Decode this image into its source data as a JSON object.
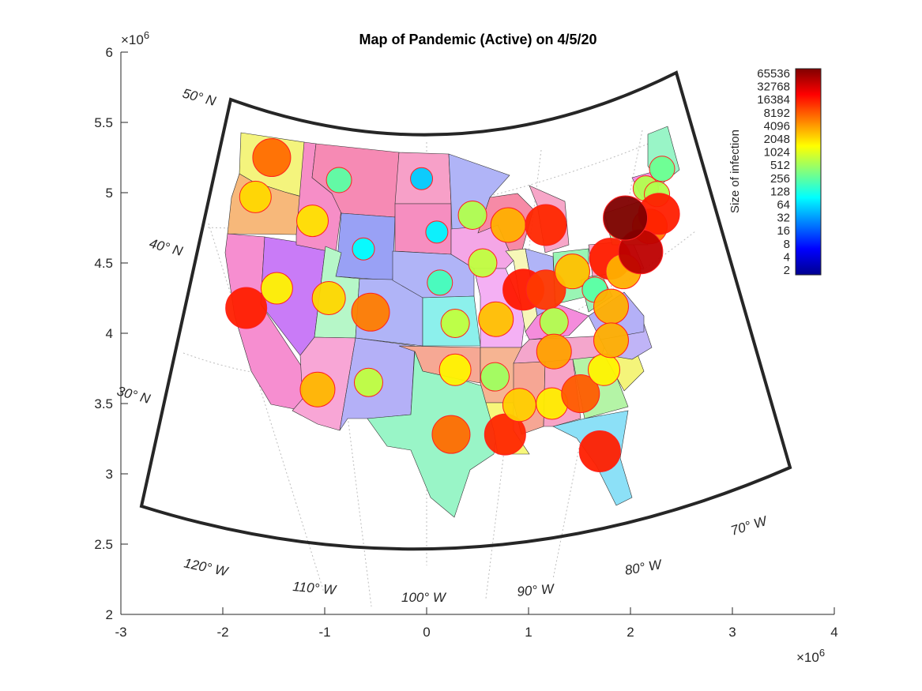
{
  "chart_data": {
    "type": "map",
    "title": "Map of Pandemic (Active) on 4/5/20",
    "x_ticks": [
      "-3",
      "-2",
      "-1",
      "0",
      "1",
      "2",
      "3",
      "4"
    ],
    "y_ticks": [
      "2",
      "2.5",
      "3",
      "3.5",
      "4",
      "4.5",
      "5",
      "5.5",
      "6"
    ],
    "x_exponent": "×10",
    "x_exponent_power": "6",
    "y_exponent": "×10",
    "y_exponent_power": "6",
    "xlim": [
      -3000000,
      4000000
    ],
    "ylim": [
      2000000,
      6000000
    ],
    "parallels": [
      "50° N",
      "40° N",
      "30° N"
    ],
    "meridians": [
      "120° W",
      "110° W",
      "100° W",
      "90° W",
      "80° W",
      "70° W"
    ],
    "colorbar": {
      "label": "Size of infection",
      "ticks": [
        "65536",
        "32768",
        "16384",
        "8192",
        "4096",
        "2048",
        "1024",
        "512",
        "256",
        "128",
        "64",
        "32",
        "16",
        "8",
        "4",
        "2"
      ],
      "scale": "log2",
      "colormap": "jet",
      "range": [
        2,
        65536
      ]
    },
    "bubbles": [
      {
        "x": -1.52,
        "y": 5.25,
        "c": 6000,
        "r": 24
      },
      {
        "x": -1.68,
        "y": 4.97,
        "c": 2000,
        "r": 20
      },
      {
        "x": -1.12,
        "y": 4.8,
        "c": 1800,
        "r": 20
      },
      {
        "x": -0.86,
        "y": 5.09,
        "c": 250,
        "r": 16
      },
      {
        "x": -0.62,
        "y": 4.6,
        "c": 100,
        "r": 14
      },
      {
        "x": -1.77,
        "y": 4.18,
        "c": 13000,
        "r": 26
      },
      {
        "x": -1.47,
        "y": 4.32,
        "c": 1500,
        "r": 20
      },
      {
        "x": -0.96,
        "y": 4.25,
        "c": 2000,
        "r": 21
      },
      {
        "x": -0.55,
        "y": 4.15,
        "c": 5000,
        "r": 24
      },
      {
        "x": -1.07,
        "y": 3.6,
        "c": 2800,
        "r": 22
      },
      {
        "x": -0.57,
        "y": 3.65,
        "c": 700,
        "r": 18
      },
      {
        "x": -0.05,
        "y": 5.1,
        "c": 60,
        "r": 14
      },
      {
        "x": 0.1,
        "y": 4.72,
        "c": 90,
        "r": 14
      },
      {
        "x": 0.13,
        "y": 4.36,
        "c": 200,
        "r": 16
      },
      {
        "x": 0.28,
        "y": 4.07,
        "c": 700,
        "r": 18
      },
      {
        "x": 0.28,
        "y": 3.74,
        "c": 1500,
        "r": 20
      },
      {
        "x": 0.24,
        "y": 3.28,
        "c": 6000,
        "r": 24
      },
      {
        "x": 0.45,
        "y": 4.84,
        "c": 600,
        "r": 18
      },
      {
        "x": 0.55,
        "y": 4.5,
        "c": 700,
        "r": 18
      },
      {
        "x": 0.67,
        "y": 3.69,
        "c": 500,
        "r": 18
      },
      {
        "x": 0.68,
        "y": 4.1,
        "c": 2500,
        "r": 22
      },
      {
        "x": 0.8,
        "y": 4.77,
        "c": 3000,
        "r": 22
      },
      {
        "x": 0.77,
        "y": 3.28,
        "c": 12000,
        "r": 26
      },
      {
        "x": 0.95,
        "y": 4.31,
        "c": 14000,
        "r": 26
      },
      {
        "x": 0.91,
        "y": 3.49,
        "c": 2200,
        "r": 21
      },
      {
        "x": 1.17,
        "y": 4.77,
        "c": 12000,
        "r": 26
      },
      {
        "x": 1.17,
        "y": 4.31,
        "c": 10000,
        "r": 25
      },
      {
        "x": 1.25,
        "y": 4.08,
        "c": 600,
        "r": 18
      },
      {
        "x": 1.25,
        "y": 3.87,
        "c": 3500,
        "r": 22
      },
      {
        "x": 1.23,
        "y": 3.5,
        "c": 1600,
        "r": 20
      },
      {
        "x": 1.43,
        "y": 4.44,
        "c": 2500,
        "r": 22
      },
      {
        "x": 1.51,
        "y": 3.57,
        "c": 7000,
        "r": 24
      },
      {
        "x": 1.65,
        "y": 4.31,
        "c": 250,
        "r": 16
      },
      {
        "x": 1.7,
        "y": 3.16,
        "c": 13000,
        "r": 26
      },
      {
        "x": 1.74,
        "y": 3.74,
        "c": 1500,
        "r": 20
      },
      {
        "x": 1.8,
        "y": 4.53,
        "c": 13000,
        "r": 26
      },
      {
        "x": 1.81,
        "y": 4.19,
        "c": 3000,
        "r": 22
      },
      {
        "x": 1.81,
        "y": 3.95,
        "c": 3000,
        "r": 22
      },
      {
        "x": 1.93,
        "y": 4.44,
        "c": 3000,
        "r": 22
      },
      {
        "x": 2.15,
        "y": 5.03,
        "c": 600,
        "r": 16
      },
      {
        "x": 2.26,
        "y": 4.99,
        "c": 600,
        "r": 16
      },
      {
        "x": 2.31,
        "y": 5.17,
        "c": 300,
        "r": 16
      },
      {
        "x": 2.19,
        "y": 4.76,
        "c": 5000,
        "r": 22
      },
      {
        "x": 2.28,
        "y": 4.85,
        "c": 13000,
        "r": 26
      },
      {
        "x": 2.1,
        "y": 4.58,
        "c": 35000,
        "r": 28
      },
      {
        "x": 1.95,
        "y": 4.82,
        "c": 65000,
        "r": 28
      }
    ]
  }
}
